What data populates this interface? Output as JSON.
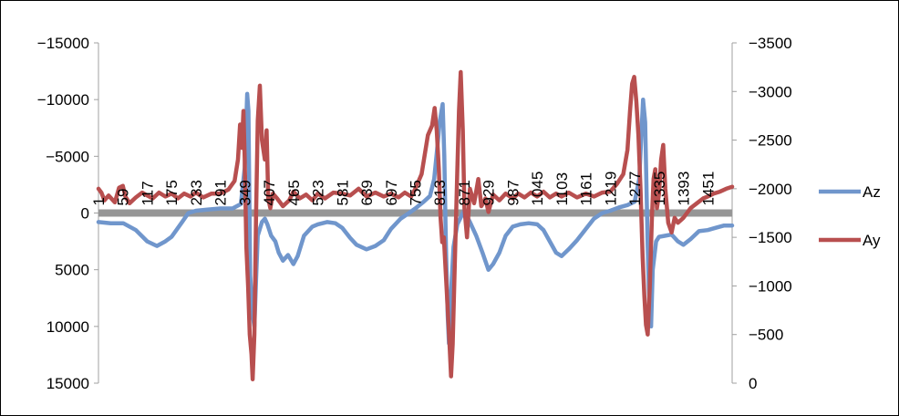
{
  "chart_data": {
    "type": "line",
    "title": "",
    "xlabel": "",
    "ylabel": "",
    "grid": false,
    "legend_position": "right",
    "x_ticks": [
      "1",
      "59",
      "117",
      "175",
      "233",
      "291",
      "349",
      "407",
      "465",
      "523",
      "581",
      "639",
      "697",
      "755",
      "813",
      "871",
      "929",
      "987",
      "1045",
      "1103",
      "1161",
      "1219",
      "1277",
      "1335",
      "1393",
      "1451"
    ],
    "x_range": [
      1,
      1509
    ],
    "y_left": {
      "ticks": [
        -15000,
        -10000,
        -5000,
        0,
        5000,
        10000,
        15000
      ],
      "tick_labels": [
        "−15000",
        "−10000",
        "−5000",
        "0",
        "5000",
        "10000",
        "15000"
      ],
      "range": [
        -15000,
        15000
      ],
      "reversed": true
    },
    "y_right": {
      "ticks": [
        -3500,
        -3000,
        -2500,
        -2000,
        -1500,
        -1000,
        -500,
        0
      ],
      "tick_labels": [
        "−3500",
        "−3000",
        "−2500",
        "−2000",
        "−1500",
        "−1000",
        "−500",
        "0"
      ],
      "range": [
        -3500,
        0
      ],
      "reversed": true
    },
    "series": [
      {
        "name": "Az",
        "axis": "left",
        "color": "#7096cc",
        "points": [
          [
            1,
            800
          ],
          [
            30,
            900
          ],
          [
            60,
            900
          ],
          [
            90,
            1500
          ],
          [
            117,
            2500
          ],
          [
            140,
            2900
          ],
          [
            160,
            2500
          ],
          [
            175,
            2100
          ],
          [
            200,
            800
          ],
          [
            215,
            0
          ],
          [
            233,
            -200
          ],
          [
            260,
            -300
          ],
          [
            291,
            -400
          ],
          [
            320,
            -400
          ],
          [
            340,
            -800
          ],
          [
            349,
            -4000
          ],
          [
            355,
            -10500
          ],
          [
            358,
            -9000
          ],
          [
            362,
            5500
          ],
          [
            368,
            9000
          ],
          [
            372,
            10000
          ],
          [
            376,
            6000
          ],
          [
            380,
            2000
          ],
          [
            390,
            800
          ],
          [
            397,
            500
          ],
          [
            403,
            1000
          ],
          [
            412,
            2000
          ],
          [
            422,
            2500
          ],
          [
            430,
            3500
          ],
          [
            440,
            4200
          ],
          [
            452,
            3700
          ],
          [
            465,
            4500
          ],
          [
            475,
            3800
          ],
          [
            490,
            2000
          ],
          [
            510,
            1200
          ],
          [
            523,
            1000
          ],
          [
            545,
            800
          ],
          [
            565,
            900
          ],
          [
            581,
            1300
          ],
          [
            600,
            2200
          ],
          [
            615,
            2800
          ],
          [
            639,
            3200
          ],
          [
            660,
            2900
          ],
          [
            680,
            2400
          ],
          [
            697,
            1400
          ],
          [
            720,
            500
          ],
          [
            740,
            0
          ],
          [
            755,
            -400
          ],
          [
            775,
            -1000
          ],
          [
            790,
            -1500
          ],
          [
            800,
            -3000
          ],
          [
            808,
            -6000
          ],
          [
            813,
            -8000
          ],
          [
            820,
            -9600
          ],
          [
            824,
            -5000
          ],
          [
            828,
            3000
          ],
          [
            832,
            9000
          ],
          [
            835,
            11500
          ],
          [
            840,
            7000
          ],
          [
            846,
            3000
          ],
          [
            855,
            1000
          ],
          [
            871,
            -200
          ],
          [
            885,
            800
          ],
          [
            900,
            2000
          ],
          [
            915,
            3500
          ],
          [
            929,
            5000
          ],
          [
            940,
            4500
          ],
          [
            955,
            3500
          ],
          [
            970,
            2000
          ],
          [
            987,
            1200
          ],
          [
            1005,
            1000
          ],
          [
            1025,
            900
          ],
          [
            1045,
            1000
          ],
          [
            1060,
            1500
          ],
          [
            1075,
            2500
          ],
          [
            1090,
            3500
          ],
          [
            1103,
            3800
          ],
          [
            1120,
            3200
          ],
          [
            1140,
            2400
          ],
          [
            1161,
            1400
          ],
          [
            1180,
            500
          ],
          [
            1200,
            0
          ],
          [
            1219,
            -200
          ],
          [
            1240,
            -500
          ],
          [
            1260,
            -700
          ],
          [
            1277,
            -1000
          ],
          [
            1288,
            -3000
          ],
          [
            1293,
            -7000
          ],
          [
            1297,
            -10000
          ],
          [
            1302,
            -8000
          ],
          [
            1308,
            3000
          ],
          [
            1312,
            8000
          ],
          [
            1316,
            10000
          ],
          [
            1320,
            5000
          ],
          [
            1328,
            2500
          ],
          [
            1335,
            2100
          ],
          [
            1350,
            2000
          ],
          [
            1365,
            1900
          ],
          [
            1380,
            2500
          ],
          [
            1393,
            2800
          ],
          [
            1410,
            2300
          ],
          [
            1430,
            1600
          ],
          [
            1451,
            1500
          ],
          [
            1470,
            1300
          ],
          [
            1490,
            1100
          ],
          [
            1509,
            1100
          ]
        ]
      },
      {
        "name": "Ay",
        "axis": "right",
        "color": "#b84f4f",
        "points": [
          [
            1,
            -2000
          ],
          [
            8,
            -1960
          ],
          [
            15,
            -1880
          ],
          [
            25,
            -1930
          ],
          [
            40,
            -1860
          ],
          [
            50,
            -2010
          ],
          [
            59,
            -2030
          ],
          [
            65,
            -1920
          ],
          [
            75,
            -1850
          ],
          [
            90,
            -1910
          ],
          [
            105,
            -1960
          ],
          [
            117,
            -1930
          ],
          [
            130,
            -1900
          ],
          [
            145,
            -1960
          ],
          [
            160,
            -1920
          ],
          [
            175,
            -1950
          ],
          [
            190,
            -1900
          ],
          [
            205,
            -1950
          ],
          [
            220,
            -1920
          ],
          [
            233,
            -1960
          ],
          [
            250,
            -1910
          ],
          [
            270,
            -1950
          ],
          [
            291,
            -1950
          ],
          [
            310,
            -1990
          ],
          [
            325,
            -2080
          ],
          [
            333,
            -2300
          ],
          [
            338,
            -2660
          ],
          [
            342,
            -2420
          ],
          [
            346,
            -2800
          ],
          [
            349,
            -2300
          ],
          [
            353,
            -1400
          ],
          [
            357,
            -1000
          ],
          [
            361,
            -500
          ],
          [
            365,
            -300
          ],
          [
            368,
            -40
          ],
          [
            372,
            -500
          ],
          [
            376,
            -1700
          ],
          [
            380,
            -2700
          ],
          [
            385,
            -3060
          ],
          [
            390,
            -2500
          ],
          [
            397,
            -2300
          ],
          [
            401,
            -2600
          ],
          [
            405,
            -1900
          ],
          [
            410,
            -1800
          ],
          [
            416,
            -1950
          ],
          [
            426,
            -1900
          ],
          [
            440,
            -1820
          ],
          [
            455,
            -1880
          ],
          [
            465,
            -1970
          ],
          [
            480,
            -1900
          ],
          [
            495,
            -1940
          ],
          [
            510,
            -1880
          ],
          [
            523,
            -1950
          ],
          [
            540,
            -1900
          ],
          [
            560,
            -1960
          ],
          [
            581,
            -1950
          ],
          [
            600,
            -1930
          ],
          [
            620,
            -2000
          ],
          [
            639,
            -1920
          ],
          [
            660,
            -1960
          ],
          [
            680,
            -1920
          ],
          [
            697,
            -1950
          ],
          [
            715,
            -1910
          ],
          [
            730,
            -1960
          ],
          [
            745,
            -1920
          ],
          [
            755,
            -2000
          ],
          [
            770,
            -2150
          ],
          [
            785,
            -2550
          ],
          [
            795,
            -2650
          ],
          [
            801,
            -2830
          ],
          [
            806,
            -2600
          ],
          [
            811,
            -2200
          ],
          [
            815,
            -1700
          ],
          [
            819,
            -1450
          ],
          [
            823,
            -1500
          ],
          [
            828,
            -1100
          ],
          [
            833,
            -700
          ],
          [
            837,
            -350
          ],
          [
            840,
            -70
          ],
          [
            844,
            -400
          ],
          [
            850,
            -1400
          ],
          [
            855,
            -2200
          ],
          [
            859,
            -2800
          ],
          [
            863,
            -3200
          ],
          [
            868,
            -2600
          ],
          [
            872,
            -1800
          ],
          [
            878,
            -1500
          ],
          [
            885,
            -2000
          ],
          [
            895,
            -1850
          ],
          [
            905,
            -2100
          ],
          [
            912,
            -1820
          ],
          [
            922,
            -1900
          ],
          [
            929,
            -1760
          ],
          [
            940,
            -1940
          ],
          [
            955,
            -1880
          ],
          [
            970,
            -1950
          ],
          [
            987,
            -1900
          ],
          [
            1000,
            -1950
          ],
          [
            1015,
            -1910
          ],
          [
            1030,
            -1960
          ],
          [
            1045,
            -1920
          ],
          [
            1060,
            -1970
          ],
          [
            1075,
            -1910
          ],
          [
            1090,
            -1950
          ],
          [
            1103,
            -1920
          ],
          [
            1120,
            -1960
          ],
          [
            1140,
            -1910
          ],
          [
            1161,
            -1950
          ],
          [
            1180,
            -1920
          ],
          [
            1200,
            -1960
          ],
          [
            1219,
            -1970
          ],
          [
            1235,
            -2050
          ],
          [
            1250,
            -2150
          ],
          [
            1260,
            -2400
          ],
          [
            1266,
            -2800
          ],
          [
            1271,
            -3080
          ],
          [
            1276,
            -3150
          ],
          [
            1281,
            -2900
          ],
          [
            1286,
            -2550
          ],
          [
            1291,
            -2000
          ],
          [
            1296,
            -1300
          ],
          [
            1300,
            -900
          ],
          [
            1304,
            -600
          ],
          [
            1308,
            -500
          ],
          [
            1313,
            -1000
          ],
          [
            1318,
            -1700
          ],
          [
            1322,
            -2100
          ],
          [
            1326,
            -2200
          ],
          [
            1330,
            -1800
          ],
          [
            1335,
            -1950
          ],
          [
            1340,
            -2300
          ],
          [
            1345,
            -2450
          ],
          [
            1350,
            -2000
          ],
          [
            1357,
            -1650
          ],
          [
            1365,
            -1550
          ],
          [
            1372,
            -1700
          ],
          [
            1380,
            -1650
          ],
          [
            1393,
            -1700
          ],
          [
            1410,
            -1800
          ],
          [
            1425,
            -1850
          ],
          [
            1440,
            -1900
          ],
          [
            1451,
            -1920
          ],
          [
            1465,
            -1950
          ],
          [
            1480,
            -1970
          ],
          [
            1495,
            -2000
          ],
          [
            1509,
            -2020
          ]
        ]
      }
    ]
  }
}
